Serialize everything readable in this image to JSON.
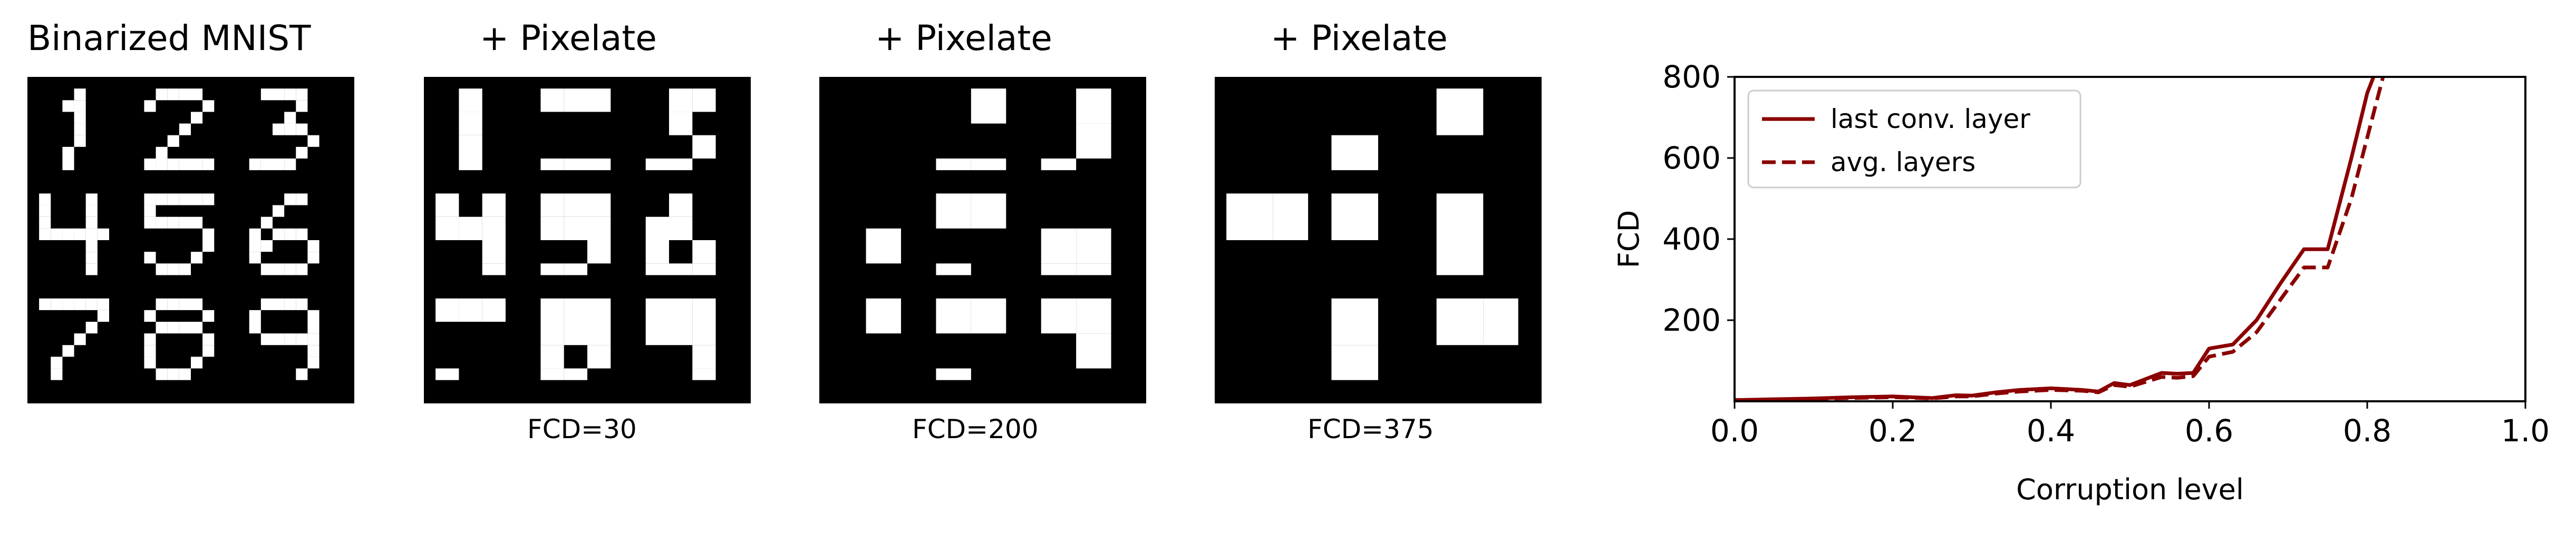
{
  "panels": [
    {
      "title": "Binarized MNIST",
      "caption": "",
      "block": 1
    },
    {
      "title": "+  Pixelate",
      "caption": "FCD=30",
      "block": 2
    },
    {
      "title": "+  Pixelate",
      "caption": "FCD=200",
      "block": 3
    },
    {
      "title": "+  Pixelate",
      "caption": "FCD=375",
      "block": 4
    }
  ],
  "colors": {
    "series": "#8b0000",
    "image_bg": "#000000",
    "digit": "#ffffff"
  },
  "chart_data": {
    "type": "line",
    "xlabel": "Corruption level",
    "ylabel": "FCD",
    "xlim": [
      0.0,
      1.0
    ],
    "ylim": [
      0,
      800
    ],
    "xticks": [
      "0.0",
      "0.2",
      "0.4",
      "0.6",
      "0.8",
      "1.0"
    ],
    "yticks": [
      "200",
      "400",
      "600",
      "800"
    ],
    "legend_position": "top-left",
    "series": [
      {
        "name": "last conv. layer",
        "style": "solid",
        "x": [
          0.0,
          0.05,
          0.1,
          0.15,
          0.2,
          0.25,
          0.28,
          0.3,
          0.33,
          0.36,
          0.4,
          0.42,
          0.44,
          0.46,
          0.48,
          0.5,
          0.52,
          0.54,
          0.56,
          0.58,
          0.6,
          0.63,
          0.66,
          0.69,
          0.72,
          0.75,
          0.78,
          0.8,
          0.82
        ],
        "y": [
          3,
          5,
          7,
          10,
          12,
          8,
          15,
          14,
          22,
          28,
          32,
          30,
          28,
          24,
          45,
          40,
          55,
          70,
          68,
          70,
          130,
          140,
          200,
          290,
          375,
          375,
          600,
          760,
          860
        ]
      },
      {
        "name": "avg. layers",
        "style": "dashed",
        "x": [
          0.0,
          0.05,
          0.1,
          0.15,
          0.2,
          0.25,
          0.28,
          0.3,
          0.33,
          0.36,
          0.4,
          0.42,
          0.44,
          0.46,
          0.48,
          0.5,
          0.52,
          0.54,
          0.56,
          0.58,
          0.6,
          0.63,
          0.66,
          0.69,
          0.72,
          0.75,
          0.78,
          0.8,
          0.82,
          0.84
        ],
        "y": [
          3,
          4,
          6,
          8,
          10,
          7,
          12,
          12,
          19,
          24,
          28,
          27,
          26,
          22,
          40,
          36,
          48,
          60,
          58,
          62,
          110,
          122,
          170,
          250,
          330,
          330,
          500,
          650,
          800,
          860
        ]
      }
    ]
  }
}
